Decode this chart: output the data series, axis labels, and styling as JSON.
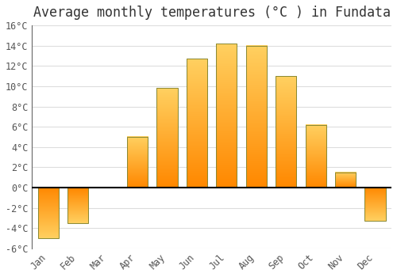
{
  "title": "Average monthly temperatures (°C ) in Fundata",
  "months": [
    "Jan",
    "Feb",
    "Mar",
    "Apr",
    "May",
    "Jun",
    "Jul",
    "Aug",
    "Sep",
    "Oct",
    "Nov",
    "Dec"
  ],
  "temperatures": [
    -5.0,
    -3.5,
    0.0,
    5.0,
    9.8,
    12.7,
    14.2,
    14.0,
    11.0,
    6.2,
    1.5,
    -3.3
  ],
  "bar_color_top": "#FFB733",
  "bar_color_bottom": "#FF8C00",
  "bar_edge_color": "#888844",
  "background_color": "#FFFFFF",
  "plot_bg_color": "#FFFFFF",
  "grid_color": "#DDDDDD",
  "ylim": [
    -6,
    16
  ],
  "yticks": [
    -6,
    -4,
    -2,
    0,
    2,
    4,
    6,
    8,
    10,
    12,
    14,
    16
  ],
  "zero_line_color": "#000000",
  "title_fontsize": 12,
  "tick_fontsize": 8.5,
  "bar_width": 0.7
}
